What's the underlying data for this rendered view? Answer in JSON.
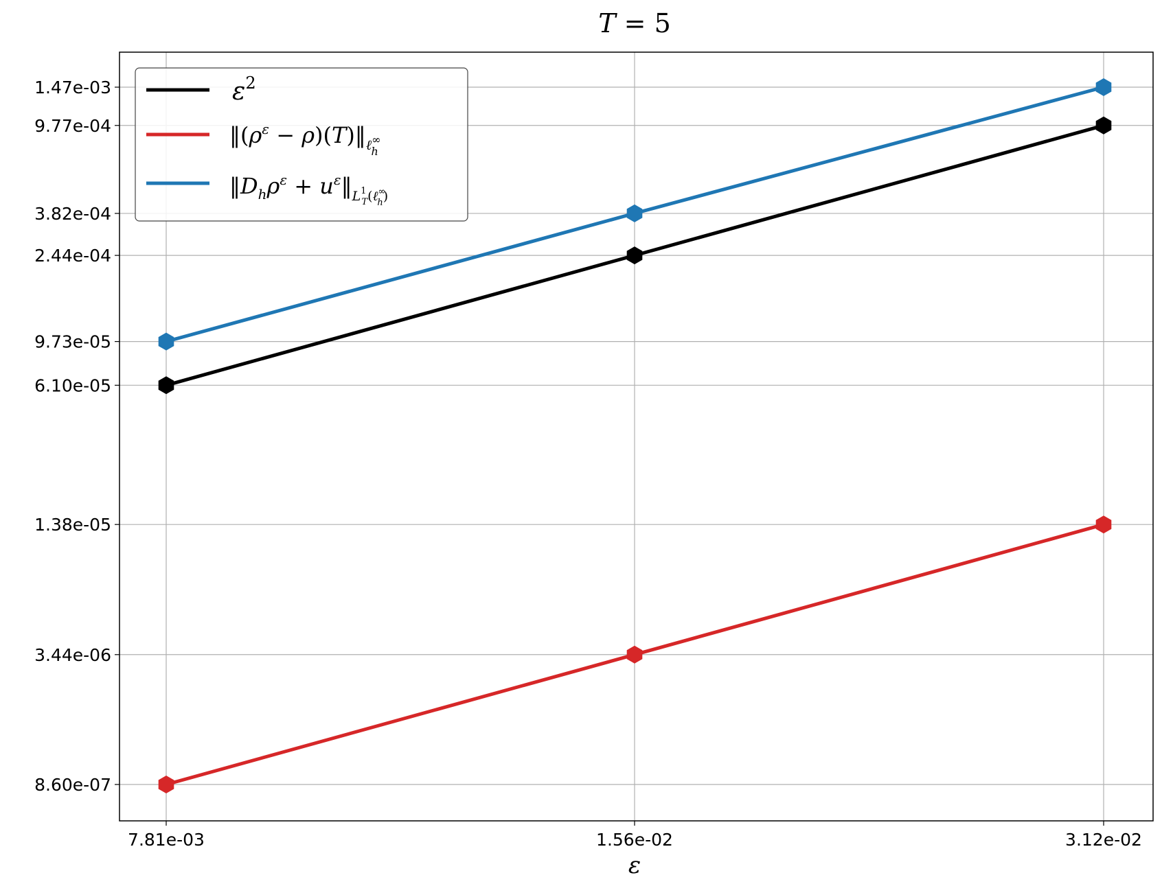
{
  "chart_data": {
    "type": "line",
    "title": "T = 5",
    "xlabel": "ε",
    "ylabel": "",
    "x_scale": "log2",
    "y_scale": "log",
    "x": [
      0.00781,
      0.0156,
      0.0312
    ],
    "x_tick_labels": [
      "7.81e-03",
      "1.56e-02",
      "3.12e-02"
    ],
    "y_ticks": [
      0.00147,
      0.000977,
      0.000382,
      0.000244,
      9.73e-05,
      6.1e-05,
      1.38e-05,
      3.44e-06,
      8.6e-07
    ],
    "y_tick_labels": [
      "1.47e-03",
      "9.77e-04",
      "3.82e-04",
      "2.44e-04",
      "9.73e-05",
      "6.10e-05",
      "1.38e-05",
      "3.44e-06",
      "8.60e-07"
    ],
    "grid": true,
    "legend_position": "upper-left",
    "series": [
      {
        "name": "ε²",
        "color": "#000000",
        "values": [
          6.1e-05,
          0.000244,
          0.000977
        ]
      },
      {
        "name": "‖(ρ^ε − ρ)(T)‖_{ℓ_h^∞}",
        "color": "#d62728",
        "values": [
          8.6e-07,
          3.44e-06,
          1.38e-05
        ]
      },
      {
        "name": "‖D_h ρ^ε + u^ε‖_{L_T^1(ℓ_h^∞)}",
        "color": "#1f77b4",
        "values": [
          9.73e-05,
          0.000382,
          0.00147
        ]
      }
    ]
  }
}
